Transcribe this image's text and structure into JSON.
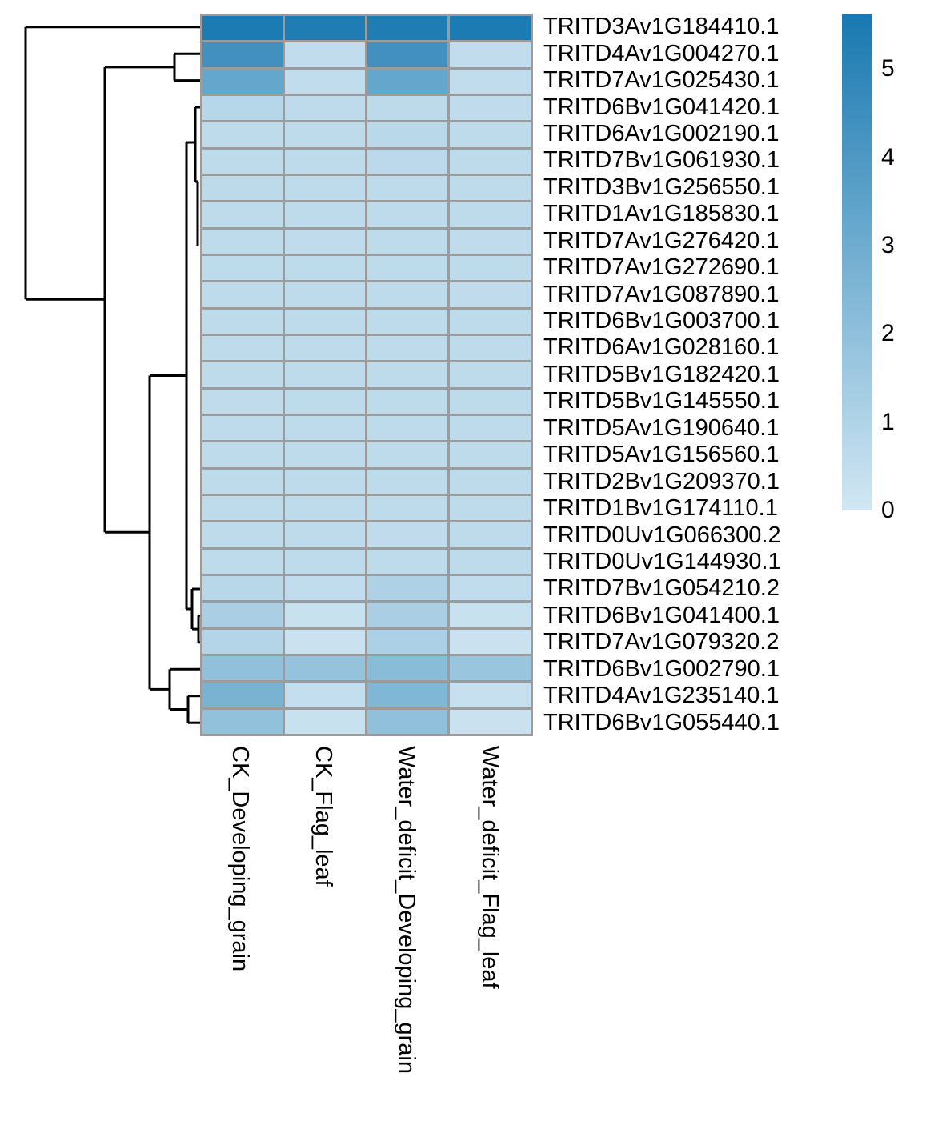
{
  "figure": {
    "description": "Clustered expression heatmap with row dendrogram",
    "background": "#ffffff"
  },
  "chart_data": {
    "type": "heatmap",
    "columns": [
      "CK_Developing_grain",
      "CK_Flag_leaf",
      "Water_deficit_Developing_grain",
      "Water_deficit_Flag_leaf"
    ],
    "rows": [
      "TRITD3Av1G184410.1",
      "TRITD4Av1G004270.1",
      "TRITD7Av1G025430.1",
      "TRITD6Bv1G041420.1",
      "TRITD6Av1G002190.1",
      "TRITD7Bv1G061930.1",
      "TRITD3Bv1G256550.1",
      "TRITD1Av1G185830.1",
      "TRITD7Av1G276420.1",
      "TRITD7Av1G272690.1",
      "TRITD7Av1G087890.1",
      "TRITD6Bv1G003700.1",
      "TRITD6Av1G028160.1",
      "TRITD5Bv1G182420.1",
      "TRITD5Bv1G145550.1",
      "TRITD5Av1G190640.1",
      "TRITD5Av1G156560.1",
      "TRITD2Bv1G209370.1",
      "TRITD1Bv1G174110.1",
      "TRITD0Uv1G066300.2",
      "TRITD0Uv1G144930.1",
      "TRITD7Bv1G054210.2",
      "TRITD6Bv1G041400.1",
      "TRITD7Av1G079320.2",
      "TRITD6Bv1G002790.1",
      "TRITD4Av1G235140.1",
      "TRITD6Bv1G055440.1"
    ],
    "values": [
      [
        5.5,
        5.4,
        5.4,
        5.5
      ],
      [
        4.4,
        0.5,
        4.4,
        0.5
      ],
      [
        3.3,
        0.5,
        3.3,
        0.5
      ],
      [
        0.85,
        0.6,
        0.65,
        0.55
      ],
      [
        0.6,
        0.6,
        0.75,
        0.6
      ],
      [
        0.6,
        0.6,
        0.7,
        0.6
      ],
      [
        0.65,
        0.6,
        0.6,
        0.6
      ],
      [
        0.6,
        0.6,
        0.6,
        0.6
      ],
      [
        0.6,
        0.55,
        0.6,
        0.55
      ],
      [
        0.6,
        0.6,
        0.6,
        0.6
      ],
      [
        0.6,
        0.6,
        0.6,
        0.55
      ],
      [
        0.6,
        0.6,
        0.6,
        0.6
      ],
      [
        0.6,
        0.6,
        0.6,
        0.6
      ],
      [
        0.6,
        0.6,
        0.6,
        0.6
      ],
      [
        0.55,
        0.6,
        0.6,
        0.6
      ],
      [
        0.6,
        0.6,
        0.6,
        0.6
      ],
      [
        0.6,
        0.6,
        0.6,
        0.6
      ],
      [
        0.6,
        0.6,
        0.6,
        0.6
      ],
      [
        0.6,
        0.6,
        0.6,
        0.6
      ],
      [
        0.6,
        0.6,
        0.55,
        0.6
      ],
      [
        0.6,
        0.6,
        0.6,
        0.6
      ],
      [
        0.8,
        0.5,
        1.1,
        0.5
      ],
      [
        1.2,
        0.3,
        1.2,
        0.3
      ],
      [
        0.9,
        0.25,
        1.15,
        0.25
      ],
      [
        2.0,
        1.85,
        2.2,
        1.7
      ],
      [
        2.7,
        0.45,
        2.45,
        0.35
      ],
      [
        1.95,
        0.3,
        2.0,
        0.25
      ]
    ],
    "legend": {
      "ticks": [
        "5",
        "4",
        "3",
        "2",
        "1",
        "0"
      ],
      "tick_values": [
        5,
        4,
        3,
        2,
        1,
        0
      ],
      "vmin": 0,
      "vmax": 5.63,
      "position": "right"
    },
    "colormap": {
      "low": "#d2e7f3",
      "high": "#1878b0",
      "low_rgb": [
        210,
        231,
        243
      ],
      "high_rgb": [
        24,
        120,
        176
      ]
    },
    "grid_color": "#9b9b9b",
    "dendrogram": {
      "side": "left",
      "line_color": "#000000",
      "h_segments": [
        [
          33.7,
          32,
          250
        ],
        [
          67.2,
          218,
          250
        ],
        [
          100.6,
          218,
          250
        ],
        [
          83.9,
          131,
          218
        ],
        [
          374.3,
          32,
          131
        ],
        [
          134.0,
          244,
          250
        ],
        [
          178.0,
          233,
          244
        ],
        [
          227.0,
          244,
          247
        ],
        [
          665.2,
          131,
          187
        ],
        [
          469.5,
          187,
          233
        ],
        [
          761.0,
          233,
          240
        ],
        [
          736.0,
          240,
          250
        ],
        [
          786.1,
          240,
          248
        ],
        [
          769.4,
          248,
          250
        ],
        [
          802.8,
          248,
          250
        ],
        [
          861.4,
          187,
          212
        ],
        [
          836.3,
          212,
          250
        ],
        [
          886.5,
          212,
          235
        ],
        [
          869.7,
          235,
          250
        ],
        [
          903.2,
          235,
          250
        ]
      ],
      "v_segments": [
        [
          32,
          33.7,
          374.3
        ],
        [
          131,
          83.9,
          665.2
        ],
        [
          218,
          67.2,
          100.6
        ],
        [
          233,
          178.0,
          761.0
        ],
        [
          244,
          134.0,
          227.0
        ],
        [
          247,
          227.0,
          307.0
        ],
        [
          187,
          469.5,
          861.4
        ],
        [
          240,
          736.0,
          786.1
        ],
        [
          248,
          769.4,
          802.8
        ],
        [
          212,
          836.3,
          886.5
        ],
        [
          235,
          869.7,
          903.2
        ]
      ]
    }
  }
}
